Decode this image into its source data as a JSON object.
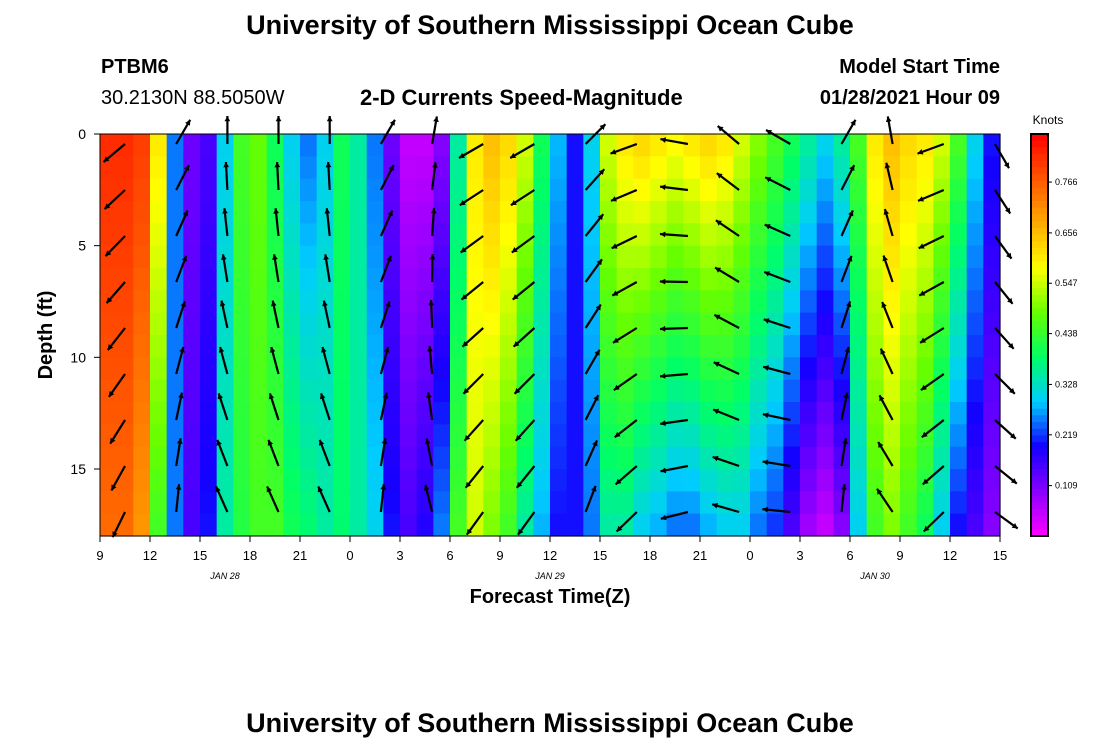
{
  "header": {
    "title": "University of Southern Mississippi Ocean Cube",
    "station_id": "PTBM6",
    "station_location": "30.2130N 88.5050W",
    "subtitle": "2-D Currents Speed-Magnitude",
    "model_start_label": "Model Start Time",
    "model_start_value": "01/28/2021 Hour 09"
  },
  "footer": {
    "title": "University of Southern Mississippi Ocean Cube"
  },
  "chart_data": {
    "type": "heatmap",
    "title": "2-D Currents Speed-Magnitude",
    "xlabel": "Forecast Time(Z)",
    "ylabel": "Depth (ft)",
    "x_tick_labels": [
      "9",
      "12",
      "15",
      "18",
      "21",
      "0",
      "3",
      "6",
      "9",
      "12",
      "15",
      "18",
      "21",
      "0",
      "3",
      "6",
      "9",
      "12",
      "15"
    ],
    "x_date_labels": [
      {
        "label": "JAN  28",
        "tick_index": 2.5
      },
      {
        "label": "JAN  29",
        "tick_index": 9
      },
      {
        "label": "JAN  30",
        "tick_index": 15.5
      }
    ],
    "y_tick_labels": [
      "0",
      "5",
      "10",
      "15"
    ],
    "y_ticks": [
      0,
      5,
      10,
      15
    ],
    "ylim": [
      0,
      18
    ],
    "y_inverted": true,
    "colorbar": {
      "unit": "Knots",
      "ticks": [
        "0.766",
        "0.656",
        "0.547",
        "0.438",
        "0.328",
        "0.219",
        "0.109"
      ],
      "range": [
        0.0,
        0.87
      ],
      "colors": [
        "#ff00ff",
        "#8800ff",
        "#1400ff",
        "#00ccff",
        "#00ff66",
        "#66ff00",
        "#ffff00",
        "#ffaa00",
        "#ff5500",
        "#ff0000"
      ]
    },
    "speed_by_time_hours_from_start": {
      "x_hours": [
        0,
        1,
        2,
        3,
        4,
        5,
        6,
        7,
        8,
        9,
        10,
        11,
        12,
        13,
        14,
        15,
        16,
        17,
        18,
        19,
        20,
        21,
        22,
        23,
        24,
        25,
        26,
        27,
        28,
        29,
        30,
        31,
        32,
        33,
        34,
        35,
        36,
        37,
        38,
        39,
        40,
        41,
        42,
        43,
        44,
        45,
        46,
        47,
        48,
        49,
        50,
        51,
        52,
        53,
        54
      ],
      "surface": [
        0.82,
        0.82,
        0.8,
        0.6,
        0.25,
        0.12,
        0.15,
        0.3,
        0.45,
        0.48,
        0.4,
        0.3,
        0.25,
        0.3,
        0.4,
        0.35,
        0.25,
        0.12,
        0.05,
        0.05,
        0.1,
        0.35,
        0.6,
        0.65,
        0.62,
        0.55,
        0.4,
        0.28,
        0.2,
        0.3,
        0.55,
        0.6,
        0.62,
        0.6,
        0.58,
        0.6,
        0.62,
        0.6,
        0.55,
        0.5,
        0.45,
        0.4,
        0.35,
        0.3,
        0.35,
        0.45,
        0.6,
        0.65,
        0.62,
        0.6,
        0.55,
        0.45,
        0.3,
        0.2,
        0.2
      ],
      "bottom": [
        0.75,
        0.75,
        0.7,
        0.45,
        0.25,
        0.15,
        0.2,
        0.35,
        0.42,
        0.45,
        0.45,
        0.4,
        0.38,
        0.35,
        0.38,
        0.35,
        0.3,
        0.2,
        0.15,
        0.18,
        0.25,
        0.45,
        0.55,
        0.5,
        0.45,
        0.35,
        0.28,
        0.2,
        0.2,
        0.25,
        0.35,
        0.35,
        0.3,
        0.28,
        0.25,
        0.25,
        0.28,
        0.3,
        0.3,
        0.25,
        0.22,
        0.15,
        0.08,
        0.05,
        0.1,
        0.3,
        0.45,
        0.5,
        0.45,
        0.4,
        0.3,
        0.2,
        0.15,
        0.1,
        0.1
      ]
    }
  }
}
